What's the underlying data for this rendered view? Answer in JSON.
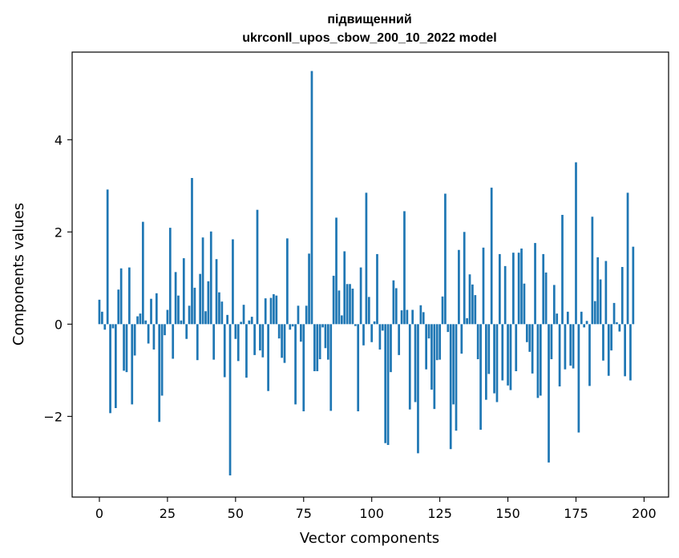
{
  "chart_data": {
    "type": "bar",
    "title_line1": "підвищенний",
    "title_line2": "ukrconll_upos_cbow_200_10_2022 model",
    "xlabel": "Vector components",
    "ylabel": "Components values",
    "xlim": [
      -10,
      209
    ],
    "ylim": [
      -3.75,
      5.9
    ],
    "xticks": [
      0,
      25,
      50,
      75,
      100,
      125,
      150,
      175,
      200
    ],
    "yticks": [
      -2,
      0,
      2,
      4
    ],
    "ytick_labels": [
      "−2",
      "0",
      "2",
      "4"
    ],
    "bar_color": "#1f77b4",
    "grid": false,
    "values": [
      0.53,
      0.27,
      -0.12,
      2.92,
      -1.93,
      -0.09,
      -1.82,
      0.75,
      1.21,
      -1.01,
      -1.04,
      1.23,
      -1.74,
      -0.68,
      0.17,
      0.23,
      2.22,
      0.08,
      -0.42,
      0.55,
      -0.55,
      0.67,
      -2.12,
      -1.55,
      -0.24,
      0.31,
      2.09,
      -0.75,
      1.13,
      0.62,
      0.08,
      1.43,
      -0.32,
      0.4,
      3.17,
      0.79,
      -0.78,
      1.09,
      1.88,
      0.28,
      0.93,
      2.01,
      -0.77,
      1.41,
      0.69,
      0.49,
      -1.15,
      0.2,
      -3.28,
      1.84,
      -0.32,
      -0.8,
      0.05,
      0.42,
      -1.16,
      0.08,
      0.16,
      -0.67,
      2.48,
      -0.57,
      -0.72,
      0.56,
      -1.45,
      0.57,
      0.65,
      0.62,
      -0.31,
      -0.73,
      -0.84,
      1.86,
      -0.12,
      -0.05,
      -1.74,
      0.4,
      -0.38,
      -1.89,
      0.4,
      1.53,
      5.49,
      -1.02,
      -1.02,
      -0.76,
      -0.07,
      -0.52,
      -0.77,
      -1.88,
      1.05,
      2.31,
      0.73,
      0.19,
      1.58,
      0.87,
      0.87,
      0.77,
      -0.04,
      -1.89,
      1.23,
      -0.46,
      2.85,
      0.59,
      -0.39,
      0.06,
      1.52,
      -0.55,
      -0.14,
      -2.58,
      -2.62,
      -1.04,
      0.95,
      0.78,
      -0.67,
      0.3,
      2.45,
      0.31,
      -1.85,
      0.31,
      -1.69,
      -2.8,
      0.41,
      0.26,
      -0.98,
      -0.31,
      -1.42,
      -1.84,
      -0.78,
      -0.77,
      0.6,
      2.83,
      -0.17,
      -2.71,
      -1.74,
      -2.31,
      1.61,
      -0.64,
      2.0,
      0.13,
      1.08,
      0.86,
      0.63,
      -0.76,
      -2.29,
      1.66,
      -1.64,
      -1.08,
      2.96,
      -1.5,
      -1.69,
      1.52,
      -1.22,
      1.26,
      -1.33,
      -1.43,
      1.55,
      -1.02,
      1.55,
      1.64,
      0.88,
      -0.39,
      -0.6,
      -1.07,
      1.76,
      -1.6,
      -1.55,
      1.52,
      1.12,
      -3.0,
      -0.76,
      0.85,
      0.23,
      -1.35,
      2.37,
      -0.98,
      0.27,
      -0.9,
      -0.96,
      3.51,
      -2.35,
      0.27,
      -0.07,
      0.07,
      -1.34,
      2.33,
      0.5,
      1.45,
      0.97,
      -0.79,
      1.37,
      -1.12,
      -0.57,
      0.46,
      0.04,
      -0.16,
      1.24,
      -1.13,
      2.85,
      -1.22,
      1.68
    ]
  }
}
